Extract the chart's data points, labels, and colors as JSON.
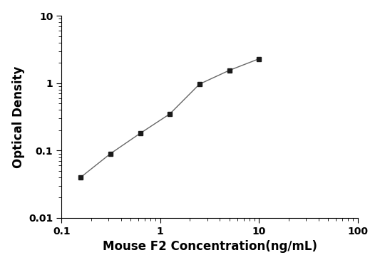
{
  "x": [
    0.156,
    0.313,
    0.625,
    1.25,
    2.5,
    5.0,
    10.0
  ],
  "y": [
    0.04,
    0.09,
    0.18,
    0.35,
    0.97,
    1.55,
    2.3
  ],
  "xlabel": "Mouse F2 Concentration(ng/mL)",
  "ylabel": "Optical Density",
  "xlim": [
    0.1,
    100
  ],
  "ylim": [
    0.01,
    10
  ],
  "line_color": "#666666",
  "marker_color": "#1a1a1a",
  "marker": "s",
  "marker_size": 5,
  "line_width": 1.0,
  "background_color": "#ffffff",
  "xlabel_fontsize": 12,
  "ylabel_fontsize": 12,
  "tick_labelsize": 10,
  "xticks": [
    0.1,
    1,
    10,
    100
  ],
  "yticks": [
    0.01,
    0.1,
    1,
    10
  ],
  "xtick_labels": [
    "0.1",
    "1",
    "10",
    "100"
  ],
  "ytick_labels": [
    "0.01",
    "0.1",
    "1",
    "10"
  ]
}
